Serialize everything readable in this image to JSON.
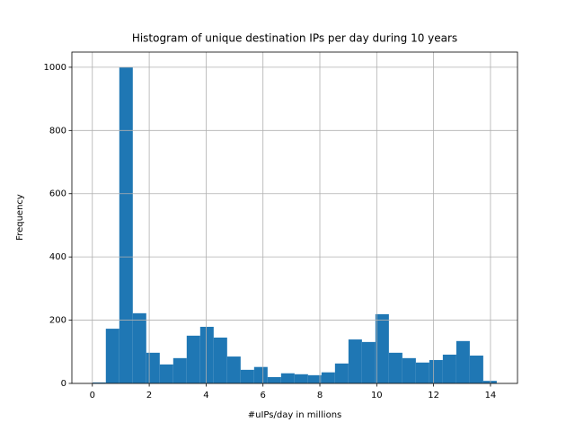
{
  "chart_data": {
    "type": "histogram",
    "title": "Histogram of unique destination IPs per day during 10 years",
    "xlabel": "#uIPs/day in millions",
    "ylabel": "Frequency",
    "bins": [
      0,
      0.474,
      0.948,
      1.422,
      1.896,
      2.37,
      2.844,
      3.318,
      3.792,
      4.266,
      4.74,
      5.214,
      5.688,
      6.162,
      6.636,
      7.11,
      7.584,
      8.058,
      8.532,
      9.006,
      9.48,
      9.954,
      10.428,
      10.902,
      11.376,
      11.85,
      12.324,
      12.798,
      13.272,
      13.746,
      14.22
    ],
    "values": [
      3,
      173,
      1000,
      222,
      97,
      60,
      80,
      151,
      179,
      145,
      85,
      43,
      52,
      20,
      32,
      29,
      26,
      35,
      63,
      139,
      131,
      219,
      97,
      80,
      66,
      74,
      91,
      134,
      88,
      8
    ],
    "color": "#1f77b4",
    "xlim": [
      -0.72,
      14.95
    ],
    "ylim": [
      0,
      1048
    ],
    "xticks": [
      0,
      2,
      4,
      6,
      8,
      10,
      12,
      14
    ],
    "yticks": [
      0,
      200,
      400,
      600,
      800,
      1000
    ],
    "grid": true
  }
}
